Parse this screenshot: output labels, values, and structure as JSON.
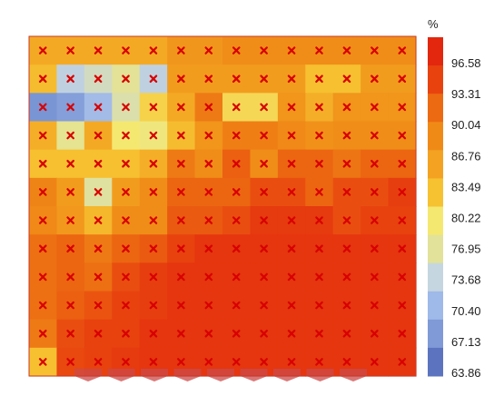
{
  "chart_data": {
    "type": "heatmap",
    "title": "",
    "xlabel": "",
    "ylabel": "",
    "rows": 12,
    "cols": 14,
    "colorbar": {
      "unit": "%",
      "ticks": [
        "96.58",
        "93.31",
        "90.04",
        "86.76",
        "83.49",
        "80.22",
        "76.95",
        "73.68",
        "70.40",
        "67.13",
        "63.86"
      ],
      "range": [
        62.2,
        98.2
      ],
      "colors": [
        "#e2270e",
        "#e8430f",
        "#ec6a12",
        "#f08a17",
        "#f3a321",
        "#f6c232",
        "#f5e870",
        "#e2e29a",
        "#c5d6e0",
        "#9fb9e8",
        "#7f9ad6",
        "#5c74bf"
      ]
    },
    "marker": {
      "symbol": "x",
      "color": "#d80000"
    },
    "bottom_markers": {
      "count": 9,
      "color": "#cc4a4a"
    },
    "values": [
      [
        84.5,
        84.5,
        84.5,
        84.5,
        84.5,
        86.8,
        86.8,
        88.0,
        88.0,
        88.0,
        88.0,
        88.0,
        88.0,
        88.0
      ],
      [
        82.5,
        71.5,
        73.5,
        75.5,
        71.5,
        86.0,
        86.0,
        86.0,
        86.0,
        86.0,
        82.0,
        82.0,
        86.0,
        86.0
      ],
      [
        65.0,
        66.0,
        69.0,
        74.5,
        80.5,
        84.5,
        90.0,
        80.0,
        80.0,
        87.0,
        84.0,
        87.0,
        87.0,
        87.0
      ],
      [
        84.0,
        76.0,
        84.5,
        78.5,
        77.5,
        82.5,
        87.0,
        89.5,
        89.5,
        88.5,
        87.5,
        88.0,
        88.0,
        88.0
      ],
      [
        82.0,
        82.0,
        82.0,
        82.0,
        84.0,
        90.0,
        88.0,
        92.5,
        88.0,
        92.0,
        92.0,
        90.5,
        92.0,
        92.0
      ],
      [
        89.0,
        86.0,
        75.0,
        86.0,
        88.0,
        92.0,
        92.0,
        92.0,
        94.0,
        94.0,
        92.0,
        94.0,
        94.0,
        95.5
      ],
      [
        88.5,
        86.5,
        83.0,
        88.0,
        88.0,
        93.0,
        93.0,
        94.0,
        96.0,
        96.0,
        96.0,
        94.0,
        95.0,
        95.0
      ],
      [
        91.0,
        92.0,
        90.0,
        92.0,
        93.0,
        95.0,
        96.5,
        96.5,
        96.5,
        96.5,
        96.5,
        96.5,
        96.5,
        96.5
      ],
      [
        91.0,
        92.0,
        91.0,
        94.0,
        95.5,
        96.5,
        96.5,
        96.5,
        96.5,
        96.5,
        96.5,
        96.5,
        96.5,
        96.5
      ],
      [
        91.0,
        92.5,
        93.5,
        95.0,
        95.5,
        96.5,
        96.5,
        96.5,
        96.5,
        96.5,
        96.5,
        96.5,
        96.5,
        96.5
      ],
      [
        90.0,
        94.0,
        95.0,
        95.0,
        96.5,
        96.5,
        96.5,
        96.5,
        96.5,
        96.5,
        96.5,
        96.5,
        96.5,
        96.5
      ],
      [
        82.0,
        94.5,
        95.0,
        96.0,
        96.5,
        96.5,
        96.5,
        96.5,
        96.5,
        96.5,
        96.5,
        96.5,
        96.5,
        96.5
      ]
    ]
  }
}
